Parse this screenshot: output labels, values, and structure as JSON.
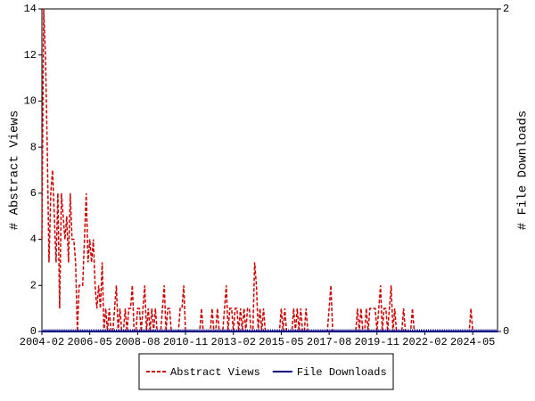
{
  "chart_data": {
    "type": "line",
    "y_label": "# Abstract Views",
    "y2_label": "# File Downloads",
    "x": [
      "2004-02",
      "2004-03",
      "2004-04",
      "2004-05",
      "2004-06",
      "2004-07",
      "2004-08",
      "2004-09",
      "2004-10",
      "2004-11",
      "2004-12",
      "2005-01",
      "2005-02",
      "2005-03",
      "2005-04",
      "2005-05",
      "2005-06",
      "2005-07",
      "2005-08",
      "2005-09",
      "2005-10",
      "2005-11",
      "2005-12",
      "2006-01",
      "2006-02",
      "2006-03",
      "2006-04",
      "2006-05",
      "2006-06",
      "2006-07",
      "2006-08",
      "2006-09",
      "2006-10",
      "2006-11",
      "2006-12",
      "2007-01",
      "2007-02",
      "2007-03",
      "2007-04",
      "2007-05",
      "2007-06",
      "2007-07",
      "2007-08",
      "2007-09",
      "2007-10",
      "2007-11",
      "2007-12",
      "2008-01",
      "2008-02",
      "2008-03",
      "2008-04",
      "2008-05",
      "2008-06",
      "2008-07",
      "2008-08",
      "2008-09",
      "2008-10",
      "2008-11",
      "2008-12",
      "2009-01",
      "2009-02",
      "2009-03",
      "2009-04",
      "2009-05",
      "2009-06",
      "2009-07",
      "2009-08",
      "2009-09",
      "2009-10",
      "2009-11",
      "2009-12",
      "2010-01",
      "2010-02",
      "2010-03",
      "2010-04",
      "2010-05",
      "2010-06",
      "2010-07",
      "2010-08",
      "2010-09",
      "2010-10",
      "2010-11",
      "2010-12",
      "2011-01",
      "2011-02",
      "2011-03",
      "2011-04",
      "2011-05",
      "2011-06",
      "2011-07",
      "2011-08",
      "2011-09",
      "2011-10",
      "2011-11",
      "2011-12",
      "2012-01",
      "2012-02",
      "2012-03",
      "2012-04",
      "2012-05",
      "2012-06",
      "2012-07",
      "2012-08",
      "2012-09",
      "2012-10",
      "2012-11",
      "2012-12",
      "2013-01",
      "2013-02",
      "2013-03",
      "2013-04",
      "2013-05",
      "2013-06",
      "2013-07",
      "2013-08",
      "2013-09",
      "2013-10",
      "2013-11",
      "2013-12",
      "2014-01",
      "2014-02",
      "2014-03",
      "2014-04",
      "2014-05",
      "2014-06",
      "2014-07",
      "2014-08",
      "2014-09",
      "2014-10",
      "2014-11",
      "2014-12",
      "2015-01",
      "2015-02",
      "2015-03",
      "2015-04",
      "2015-05",
      "2015-06",
      "2015-07",
      "2015-08",
      "2015-09",
      "2015-10",
      "2015-11",
      "2015-12",
      "2016-01",
      "2016-02",
      "2016-03",
      "2016-04",
      "2016-05",
      "2016-06",
      "2016-07",
      "2016-08",
      "2016-09",
      "2016-10",
      "2016-11",
      "2016-12",
      "2017-01",
      "2017-02",
      "2017-03",
      "2017-04",
      "2017-05",
      "2017-06",
      "2017-07",
      "2017-08",
      "2017-09",
      "2017-10",
      "2017-11",
      "2017-12",
      "2018-01",
      "2018-02",
      "2018-03",
      "2018-04",
      "2018-05",
      "2018-06",
      "2018-07",
      "2018-08",
      "2018-09",
      "2018-10",
      "2018-11",
      "2018-12",
      "2019-01",
      "2019-02",
      "2019-03",
      "2019-04",
      "2019-05",
      "2019-06",
      "2019-07",
      "2019-08",
      "2019-09",
      "2019-10",
      "2019-11",
      "2019-12",
      "2020-01",
      "2020-02",
      "2020-03",
      "2020-04",
      "2020-05",
      "2020-06",
      "2020-07",
      "2020-08",
      "2020-09",
      "2020-10",
      "2020-11",
      "2020-12",
      "2021-01",
      "2021-02",
      "2021-03",
      "2021-04",
      "2021-05",
      "2021-06",
      "2021-07",
      "2021-08",
      "2021-09",
      "2021-10",
      "2021-11",
      "2021-12",
      "2022-01",
      "2022-02",
      "2022-03",
      "2022-04",
      "2022-05",
      "2022-06",
      "2022-07",
      "2022-08",
      "2022-09",
      "2022-10",
      "2022-11",
      "2022-12",
      "2023-01",
      "2023-02",
      "2023-03",
      "2023-04",
      "2023-05",
      "2023-06",
      "2023-07",
      "2023-08",
      "2023-09",
      "2023-10",
      "2023-11",
      "2023-12",
      "2024-01",
      "2024-02",
      "2024-03",
      "2024-04",
      "2024-05",
      "2024-06",
      "2024-07",
      "2024-08",
      "2024-09",
      "2024-10",
      "2024-11",
      "2024-12",
      "2025-01",
      "2025-02",
      "2025-03",
      "2025-04",
      "2025-05",
      "2025-06",
      "2025-07"
    ],
    "xticks": [
      "2004-02",
      "2006-05",
      "2008-08",
      "2010-11",
      "2013-02",
      "2015-05",
      "2017-08",
      "2019-11",
      "2022-02",
      "2024-05"
    ],
    "ylim": [
      0,
      14
    ],
    "yticks": [
      0,
      2,
      4,
      6,
      8,
      10,
      12,
      14
    ],
    "y2lim": [
      0,
      2
    ],
    "y2ticks": [
      0,
      2
    ],
    "grid": false,
    "legend": "bottom",
    "series": [
      {
        "name": "Abstract Views",
        "color": "#cc0000",
        "dashed": true,
        "values": [
          4,
          14,
          12,
          8,
          3,
          6,
          7,
          5,
          3,
          6,
          1,
          6,
          5,
          4,
          5,
          3,
          6,
          4,
          4,
          3,
          0,
          2,
          2,
          2,
          4,
          6,
          3,
          4,
          3,
          4,
          2,
          1,
          2,
          1,
          3,
          0,
          1,
          0,
          1,
          0,
          0,
          1,
          2,
          0,
          1,
          0,
          0,
          1,
          0,
          1,
          1,
          2,
          0,
          0,
          1,
          1,
          0,
          1,
          2,
          0,
          1,
          0,
          1,
          0,
          1,
          0,
          0,
          0,
          1,
          2,
          0,
          1,
          1,
          0,
          0,
          0,
          0,
          0,
          1,
          1,
          2,
          0,
          0,
          0,
          0,
          0,
          0,
          0,
          0,
          0,
          1,
          0,
          0,
          0,
          0,
          0,
          1,
          0,
          0,
          1,
          0,
          0,
          0,
          1,
          2,
          0,
          1,
          1,
          0,
          1,
          1,
          0,
          1,
          0,
          1,
          0,
          1,
          1,
          0,
          0,
          3,
          2,
          0,
          1,
          0,
          1,
          0,
          0,
          0,
          0,
          0,
          0,
          0,
          0,
          0,
          1,
          0,
          1,
          0,
          0,
          0,
          0,
          1,
          0,
          1,
          0,
          1,
          0,
          0,
          1,
          0,
          0,
          0,
          0,
          0,
          0,
          0,
          0,
          0,
          0,
          0,
          0,
          1,
          2,
          0,
          0,
          0,
          0,
          0,
          0,
          0,
          0,
          0,
          0,
          0,
          0,
          0,
          0,
          1,
          0,
          1,
          0,
          0,
          1,
          0,
          1,
          1,
          1,
          1,
          0,
          1,
          2,
          0,
          1,
          1,
          0,
          1,
          2,
          0,
          1,
          0,
          0,
          0,
          0,
          1,
          0,
          0,
          0,
          0,
          1,
          0,
          0,
          0,
          0,
          0,
          0,
          0,
          0,
          0,
          0,
          0,
          0,
          0,
          0,
          0,
          0,
          0,
          0,
          0,
          0,
          0,
          0,
          0,
          0,
          0,
          0,
          0,
          0,
          0,
          0,
          0,
          0,
          1,
          0,
          0,
          0,
          0,
          0,
          0,
          0,
          0,
          0,
          0,
          0,
          0,
          0,
          0,
          0
        ]
      },
      {
        "name": "File Downloads",
        "color": "#000080",
        "dashed": false,
        "axis": "y2",
        "values": [
          0,
          0,
          0,
          0,
          0,
          0,
          0,
          0,
          0,
          0,
          0,
          0,
          0,
          0,
          0,
          0,
          0,
          0,
          0,
          0,
          0,
          0,
          0,
          0,
          0,
          0,
          0,
          0,
          0,
          0,
          0,
          0,
          0,
          0,
          0,
          0,
          0,
          0,
          0,
          0,
          0,
          0,
          0,
          0,
          0,
          0,
          0,
          0,
          0,
          0,
          0,
          0,
          0,
          0,
          0,
          0,
          0,
          0,
          0,
          0,
          0,
          0,
          0,
          0,
          0,
          0,
          0,
          0,
          0,
          0,
          0,
          0,
          0,
          0,
          0,
          0,
          0,
          0,
          0,
          0,
          0,
          0,
          0,
          0,
          0,
          0,
          0,
          0,
          0,
          0,
          0,
          0,
          0,
          0,
          0,
          0,
          0,
          0,
          0,
          0,
          0,
          0,
          0,
          0,
          0,
          0,
          0,
          0,
          0,
          0,
          0,
          0,
          0,
          0,
          0,
          0,
          0,
          0,
          0,
          0,
          0,
          0,
          0,
          0,
          0,
          0,
          0,
          0,
          0,
          0,
          0,
          0,
          0,
          0,
          0,
          0,
          0,
          0,
          0,
          0,
          0,
          0,
          0,
          0,
          0,
          0,
          0,
          0,
          0,
          0,
          0,
          0,
          0,
          0,
          0,
          0,
          0,
          0,
          0,
          0,
          0,
          0,
          0,
          0,
          0,
          0,
          0,
          0,
          0,
          0,
          0,
          0,
          0,
          0,
          0,
          0,
          0,
          0,
          0,
          0,
          0,
          0,
          0,
          0,
          0,
          0,
          0,
          0,
          0,
          0,
          0,
          0,
          0,
          0,
          0,
          0,
          0,
          0,
          0,
          0,
          0,
          0,
          0,
          0,
          0,
          0,
          0,
          0,
          0,
          0,
          0,
          0,
          0,
          0,
          0,
          0,
          0,
          0,
          0,
          0,
          0,
          0,
          0,
          0,
          0,
          0,
          0,
          0,
          0,
          0,
          0,
          0,
          0,
          0,
          0,
          0,
          0,
          0,
          0,
          0,
          0,
          0,
          0,
          0,
          0,
          0,
          0,
          0,
          0,
          0,
          0,
          0,
          0,
          0,
          0,
          0,
          0,
          0
        ]
      }
    ]
  }
}
